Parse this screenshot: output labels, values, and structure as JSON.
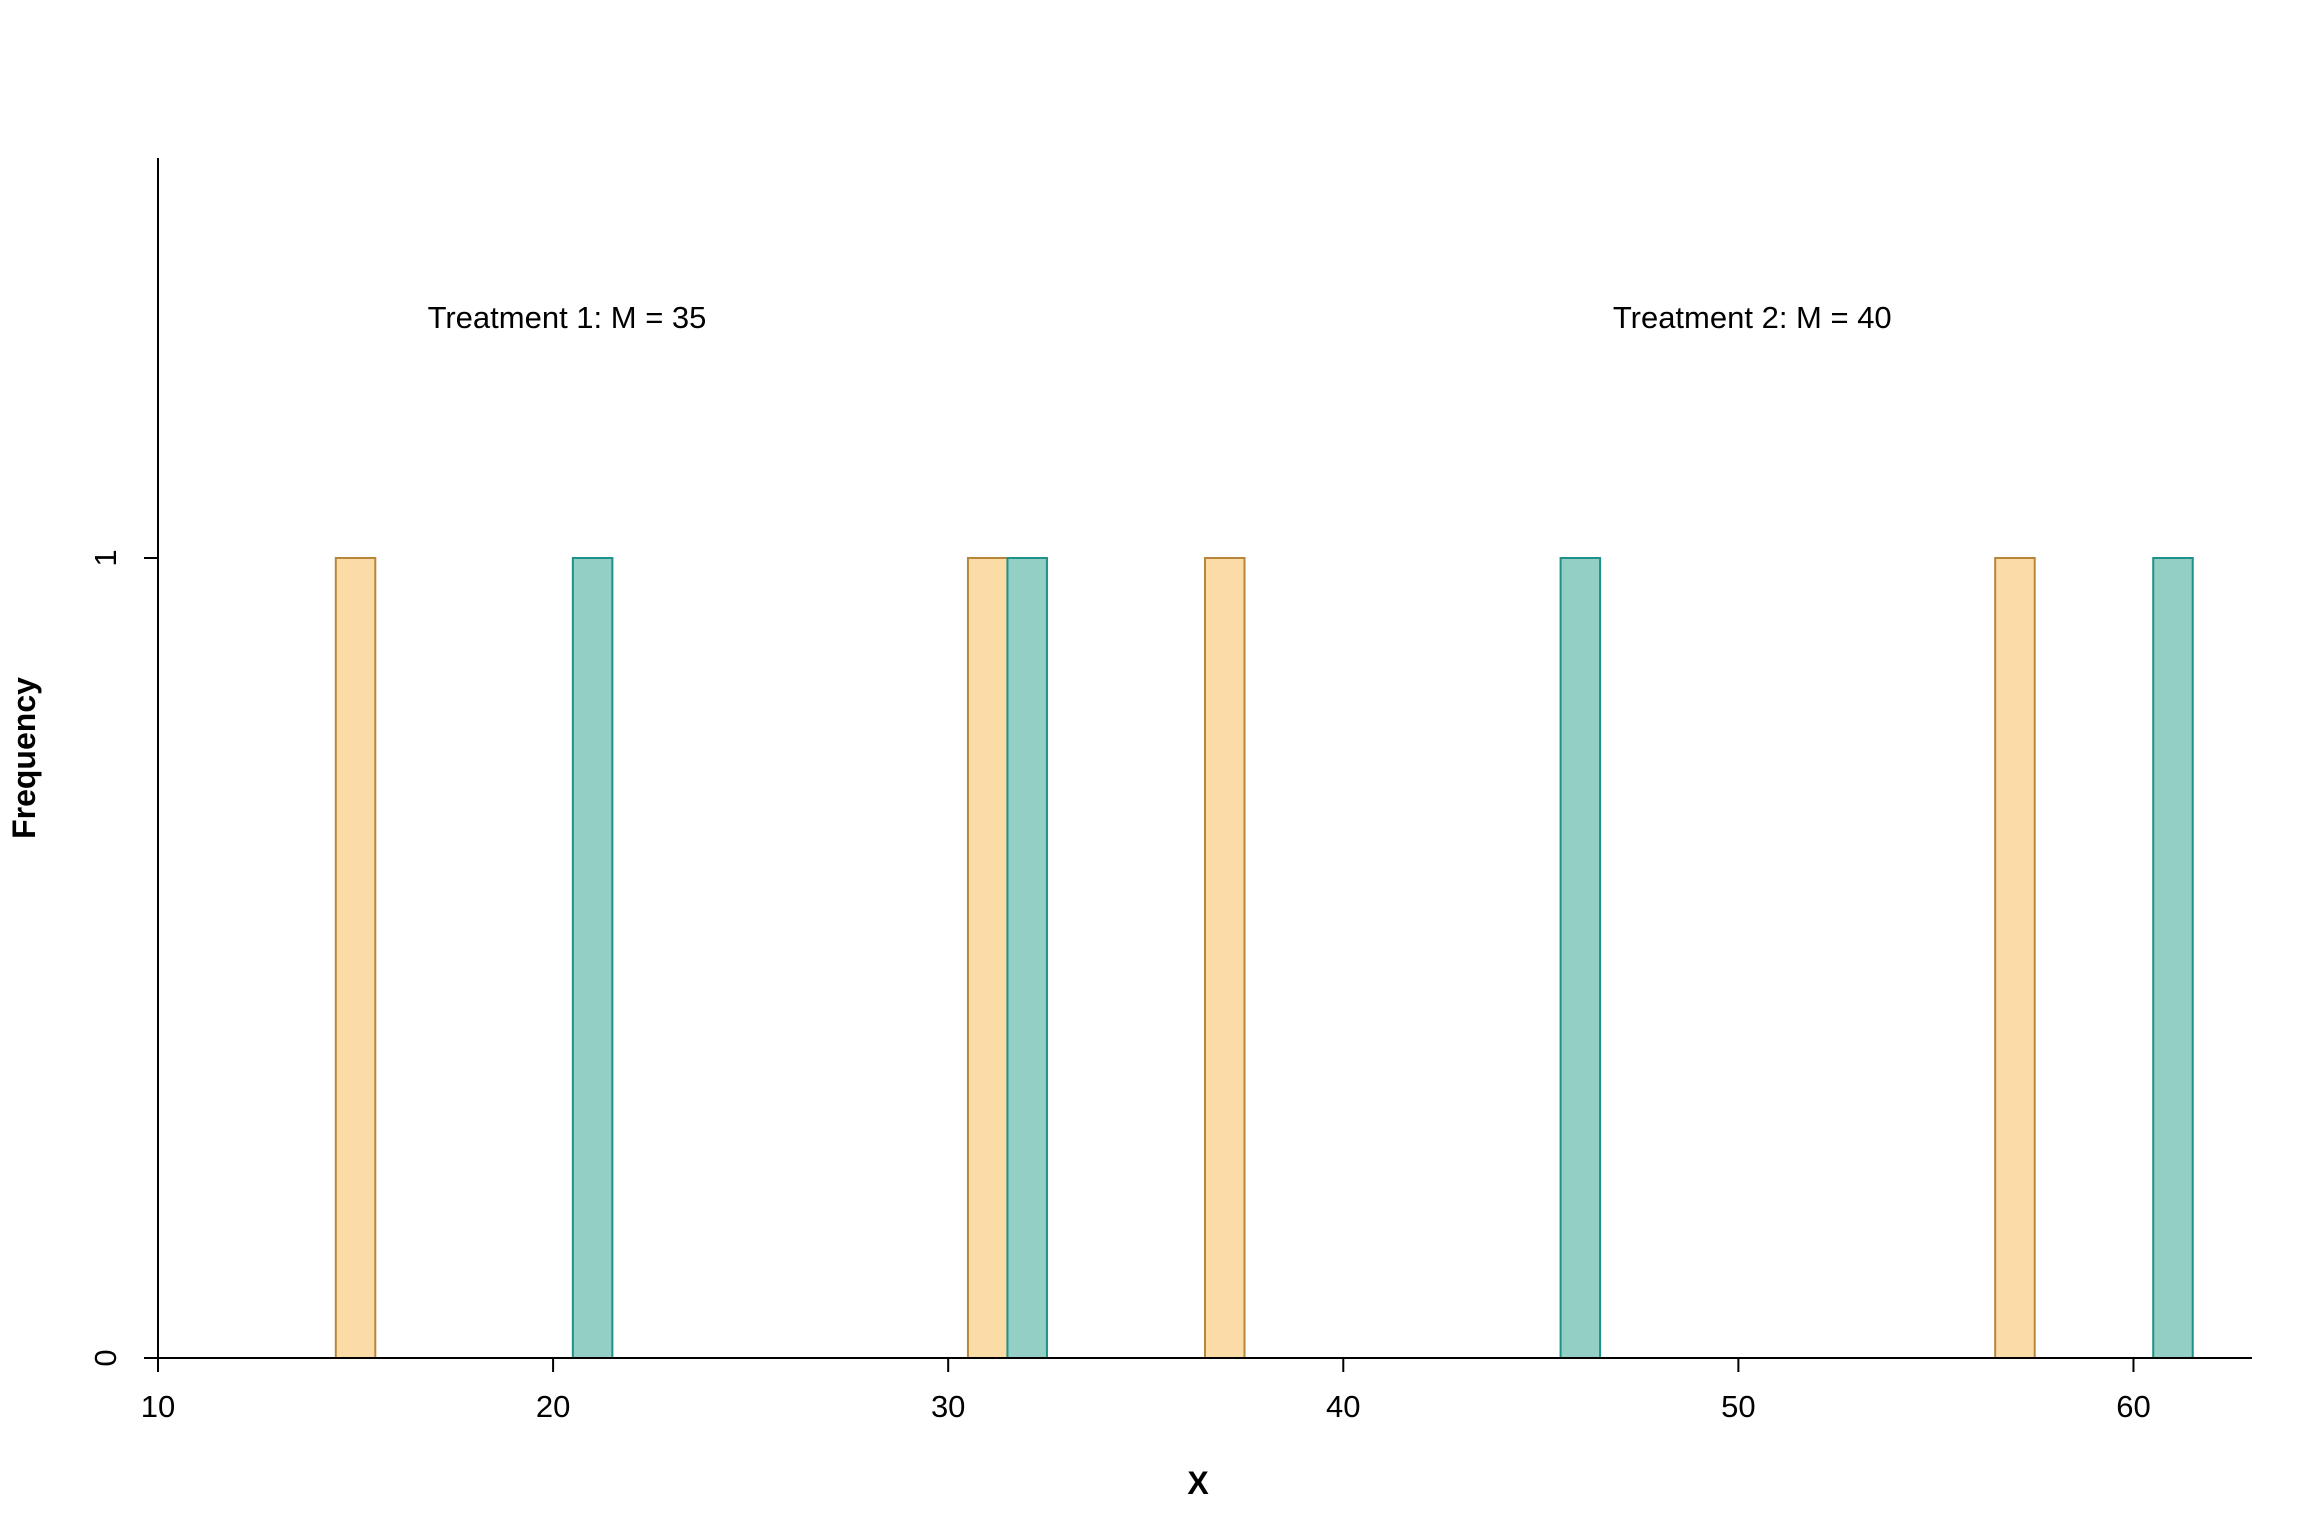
{
  "chart_data": {
    "type": "bar",
    "xlabel": "X",
    "ylabel": "Frequency",
    "xlim": [
      10,
      63
    ],
    "ylim": [
      0,
      1.5
    ],
    "x_ticks": [
      "10",
      "20",
      "30",
      "40",
      "50",
      "60"
    ],
    "y_ticks": [
      "0",
      "1"
    ],
    "grid": false,
    "bin_width": 1,
    "series": [
      {
        "color": "#FBDBA6",
        "edge_color": "#B8863B",
        "bars": [
          {
            "x": 15,
            "value": 1
          },
          {
            "x": 31,
            "value": 1
          },
          {
            "x": 37,
            "value": 1
          },
          {
            "x": 57,
            "value": 1
          }
        ]
      },
      {
        "color": "#93CFC5",
        "edge_color": "#1E9188",
        "bars": [
          {
            "x": 21,
            "value": 1
          },
          {
            "x": 32,
            "value": 1
          },
          {
            "x": 46,
            "value": 1
          },
          {
            "x": 61,
            "value": 1
          }
        ]
      }
    ],
    "annotations": [
      {
        "text": "Treatment 1: M = 35",
        "x": 17,
        "y": 1.3
      },
      {
        "text": "Treatment 2: M = 40",
        "x": 47,
        "y": 1.3
      }
    ]
  }
}
